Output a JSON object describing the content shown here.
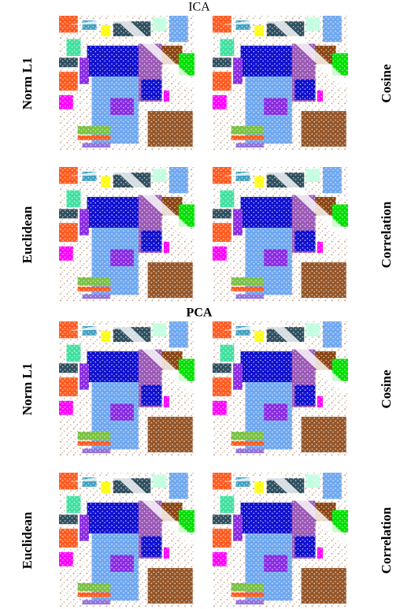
{
  "sections": [
    {
      "title": "ICA",
      "rows": [
        {
          "left": "Norm L1",
          "right": "Cosine"
        },
        {
          "left": "Euclidean",
          "right": "Correlation"
        }
      ]
    },
    {
      "title": "PCA",
      "rows": [
        {
          "left": "Norm L1",
          "right": "Cosine"
        },
        {
          "left": "Euclidean",
          "right": "Correlation"
        }
      ]
    }
  ]
}
